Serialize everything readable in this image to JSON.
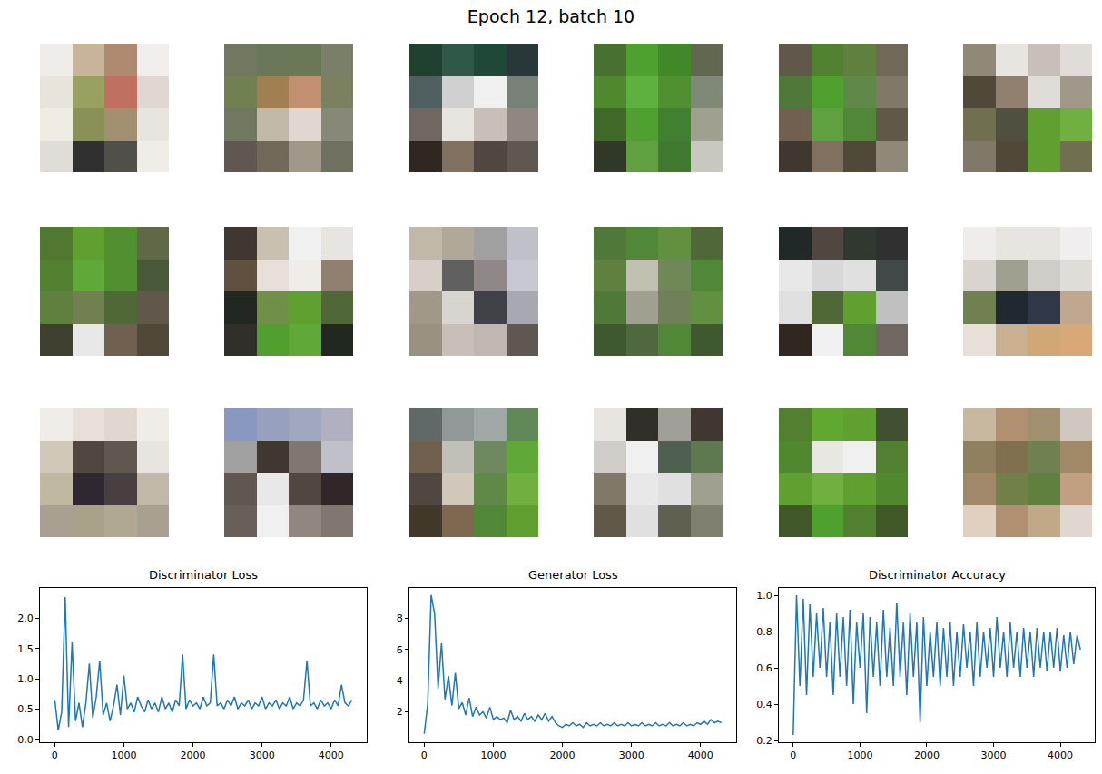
{
  "title": "Epoch 12, batch 10",
  "chart_data": [
    {
      "type": "image",
      "images": [
        {
          "pixels": [
            [
              "#f0ecea",
              "#c8b49a",
              "#b08a70",
              "#f2eeee"
            ],
            [
              "#e8e4dc",
              "#9aa060",
              "#c07060",
              "#e0d8d0"
            ],
            [
              "#f0ece4",
              "#8a9058",
              "#a09070",
              "#e8e4e0"
            ],
            [
              "#e0dcd8",
              "#303030",
              "#505048",
              "#f0ece8"
            ]
          ]
        },
        {
          "pixels": [
            [
              "#707860",
              "#687858",
              "#6a7858",
              "#7a8068"
            ],
            [
              "#708050",
              "#a08050",
              "#c09070",
              "#7a8060"
            ],
            [
              "#707860",
              "#c0b8a8",
              "#e0d8d0",
              "#888878"
            ],
            [
              "#605850",
              "#706858",
              "#a09888",
              "#707060"
            ]
          ]
        },
        {
          "pixels": [
            [
              "#204030",
              "#305848",
              "#204838",
              "#283838"
            ],
            [
              "#506060",
              "#d0d0d0",
              "#f0f0f0",
              "#788078"
            ],
            [
              "#706860",
              "#e8e4e0",
              "#c8c0b8",
              "#908880"
            ],
            [
              "#302820",
              "#807060",
              "#504840",
              "#605850"
            ]
          ]
        },
        {
          "pixels": [
            [
              "#487030",
              "#50a030",
              "#408828",
              "#606850"
            ],
            [
              "#508830",
              "#60b040",
              "#509030",
              "#808878"
            ],
            [
              "#406828",
              "#50a030",
              "#408030",
              "#a0a090"
            ],
            [
              "#303828",
              "#60a040",
              "#407830",
              "#c8c8c0"
            ]
          ]
        },
        {
          "pixels": [
            [
              "#605848",
              "#508030",
              "#608040",
              "#706858"
            ],
            [
              "#507838",
              "#50a030",
              "#608848",
              "#807868"
            ],
            [
              "#706050",
              "#60a040",
              "#508838",
              "#605848"
            ],
            [
              "#403830",
              "#807060",
              "#504838",
              "#908878"
            ]
          ]
        },
        {
          "pixels": [
            [
              "#908878",
              "#e8e4e0",
              "#c8c0b8",
              "#e0dcd8"
            ],
            [
              "#504838",
              "#908070",
              "#e0dcd8",
              "#a09888"
            ],
            [
              "#707050",
              "#505040",
              "#60a030",
              "#70b040"
            ],
            [
              "#807868",
              "#504838",
              "#60a030",
              "#707050"
            ]
          ]
        },
        {
          "pixels": [
            [
              "#507830",
              "#60a030",
              "#509030",
              "#606848"
            ],
            [
              "#508030",
              "#60a838",
              "#509030",
              "#485838"
            ],
            [
              "#608040",
              "#708050",
              "#506838",
              "#605848"
            ],
            [
              "#404030",
              "#e8e8e8",
              "#706050",
              "#504838"
            ]
          ]
        },
        {
          "pixels": [
            [
              "#403830",
              "#c8c0b0",
              "#f0f0f0",
              "#e8e4e0"
            ],
            [
              "#605040",
              "#e8e0d8",
              "#f0ece8",
              "#908070"
            ],
            [
              "#202820",
              "#709048",
              "#60a030",
              "#506838"
            ],
            [
              "#303028",
              "#50a030",
              "#60a838",
              "#202820"
            ]
          ]
        },
        {
          "pixels": [
            [
              "#c0b8a8",
              "#b0a898",
              "#a0a0a0",
              "#c0c0c8"
            ],
            [
              "#d8d0c8",
              "#606060",
              "#908888",
              "#c8c8d0"
            ],
            [
              "#a09888",
              "#d8d4d0",
              "#404048",
              "#a8a8b0"
            ],
            [
              "#989080",
              "#c8c0b8",
              "#c0b8b0",
              "#605850"
            ]
          ]
        },
        {
          "pixels": [
            [
              "#507838",
              "#508838",
              "#609040",
              "#506838"
            ],
            [
              "#608040",
              "#c0c0b0",
              "#708858",
              "#508838"
            ],
            [
              "#507838",
              "#a0a090",
              "#708058",
              "#609040"
            ],
            [
              "#405830",
              "#506840",
              "#508838",
              "#405830"
            ]
          ]
        },
        {
          "pixels": [
            [
              "#202828",
              "#504840",
              "#303830",
              "#303030"
            ],
            [
              "#e8e8e8",
              "#d8d8d8",
              "#e0e0e0",
              "#404848"
            ],
            [
              "#e0e0e0",
              "#506838",
              "#60a030",
              "#c0c0c0"
            ],
            [
              "#302820",
              "#f0f0f0",
              "#508838",
              "#706860"
            ]
          ]
        },
        {
          "pixels": [
            [
              "#f0ecec",
              "#e8e4e0",
              "#e8e4e0",
              "#f0eeee"
            ],
            [
              "#d8d4d0",
              "#a0a090",
              "#d0ccc8",
              "#e0dcd8"
            ],
            [
              "#708050",
              "#202830",
              "#303848",
              "#c0a890"
            ],
            [
              "#e8e0d8",
              "#c8b090",
              "#d0a878",
              "#d8a878"
            ]
          ]
        },
        {
          "pixels": [
            [
              "#f0ece8",
              "#e8e0d8",
              "#e0d8d0",
              "#f0ece8"
            ],
            [
              "#d0c8b8",
              "#504840",
              "#605850",
              "#e8e4e0"
            ],
            [
              "#c0b8a0",
              "#302830",
              "#484040",
              "#c0b8a8"
            ],
            [
              "#a8a090",
              "#a8a088",
              "#b0a890",
              "#a8a090"
            ]
          ]
        },
        {
          "pixels": [
            [
              "#8898c0",
              "#98a0c0",
              "#a0a8c0",
              "#b0b0c0"
            ],
            [
              "#a0a0a0",
              "#403830",
              "#807870",
              "#c0c0c8"
            ],
            [
              "#605850",
              "#e8e8e8",
              "#504840",
              "#302828"
            ],
            [
              "#686058",
              "#f0f0f0",
              "#908880",
              "#807870"
            ]
          ]
        },
        {
          "pixels": [
            [
              "#606868",
              "#909898",
              "#a0a8a8",
              "#608858"
            ],
            [
              "#706050",
              "#c0c0b8",
              "#708860",
              "#60a838"
            ],
            [
              "#504840",
              "#d0c8b8",
              "#608848",
              "#70b040"
            ],
            [
              "#403828",
              "#806850",
              "#508838",
              "#60a030"
            ]
          ]
        },
        {
          "pixels": [
            [
              "#e8e4e0",
              "#303028",
              "#a0a098",
              "#403830"
            ],
            [
              "#d0ccc8",
              "#f0f0f0",
              "#506050",
              "#607850"
            ],
            [
              "#807868",
              "#e8e8e8",
              "#e0e0e0",
              "#a0a090"
            ],
            [
              "#605848",
              "#e0e0e0",
              "#606050",
              "#808070"
            ]
          ]
        },
        {
          "pixels": [
            [
              "#508030",
              "#60a830",
              "#60a030",
              "#405030"
            ],
            [
              "#508830",
              "#e8e8e0",
              "#f0f0f0",
              "#508030"
            ],
            [
              "#60a030",
              "#70b040",
              "#60a030",
              "#508830"
            ],
            [
              "#405828",
              "#50a030",
              "#508030",
              "#405828"
            ]
          ]
        },
        {
          "pixels": [
            [
              "#c8b8a0",
              "#b09070",
              "#a09070",
              "#d0c8c0"
            ],
            [
              "#908060",
              "#807050",
              "#708050",
              "#a08868"
            ],
            [
              "#a08868",
              "#708048",
              "#608040",
              "#c0a080"
            ],
            [
              "#e0d0c0",
              "#b09070",
              "#c0a888",
              "#e0d8d0"
            ]
          ]
        }
      ]
    },
    {
      "type": "line",
      "title": "Discriminator Loss",
      "color": "#1f77b4",
      "x": [
        0,
        50,
        100,
        150,
        200,
        250,
        300,
        350,
        400,
        450,
        500,
        550,
        600,
        650,
        700,
        750,
        800,
        850,
        900,
        950,
        1000,
        1050,
        1100,
        1150,
        1200,
        1250,
        1300,
        1350,
        1400,
        1450,
        1500,
        1550,
        1600,
        1650,
        1700,
        1750,
        1800,
        1850,
        1900,
        1950,
        2000,
        2050,
        2100,
        2150,
        2200,
        2250,
        2300,
        2350,
        2400,
        2450,
        2500,
        2550,
        2600,
        2650,
        2700,
        2750,
        2800,
        2850,
        2900,
        2950,
        3000,
        3050,
        3100,
        3150,
        3200,
        3250,
        3300,
        3350,
        3400,
        3450,
        3500,
        3550,
        3600,
        3650,
        3700,
        3750,
        3800,
        3850,
        3900,
        3950,
        4000,
        4050,
        4100,
        4150,
        4200,
        4250,
        4300
      ],
      "values": [
        0.65,
        0.15,
        0.45,
        2.35,
        0.2,
        1.6,
        0.3,
        0.6,
        0.2,
        0.6,
        1.25,
        0.35,
        0.7,
        1.3,
        0.4,
        0.6,
        0.3,
        0.55,
        0.9,
        0.4,
        1.05,
        0.5,
        0.6,
        0.45,
        0.7,
        0.55,
        0.45,
        0.65,
        0.5,
        0.6,
        0.45,
        0.7,
        0.5,
        0.6,
        0.45,
        0.65,
        0.55,
        1.4,
        0.5,
        0.65,
        0.55,
        0.6,
        0.5,
        0.7,
        0.55,
        0.6,
        1.4,
        0.55,
        0.6,
        0.5,
        0.65,
        0.55,
        0.7,
        0.5,
        0.6,
        0.55,
        0.65,
        0.5,
        0.6,
        0.55,
        0.7,
        0.5,
        0.6,
        0.55,
        0.65,
        0.5,
        0.6,
        0.55,
        0.7,
        0.5,
        0.6,
        0.55,
        0.65,
        1.3,
        0.55,
        0.6,
        0.5,
        0.65,
        0.55,
        0.6,
        0.5,
        0.65,
        0.55,
        0.9,
        0.6,
        0.55,
        0.65
      ],
      "xlim": [
        -215,
        4515
      ],
      "xticks": [
        0,
        1000,
        2000,
        3000,
        4000
      ],
      "ylim": [
        -0.05,
        2.5
      ],
      "yticks": [
        {
          "value": 0,
          "label": "0.0"
        },
        {
          "value": 0.5,
          "label": "0.5"
        },
        {
          "value": 1,
          "label": "1.0"
        },
        {
          "value": 1.5,
          "label": "1.5"
        },
        {
          "value": 2,
          "label": "2.0"
        }
      ],
      "grid": false
    },
    {
      "type": "line",
      "title": "Generator Loss",
      "color": "#1f77b4",
      "x": [
        0,
        50,
        100,
        150,
        200,
        250,
        300,
        350,
        400,
        450,
        500,
        550,
        600,
        650,
        700,
        750,
        800,
        850,
        900,
        950,
        1000,
        1050,
        1100,
        1150,
        1200,
        1250,
        1300,
        1350,
        1400,
        1450,
        1500,
        1550,
        1600,
        1650,
        1700,
        1750,
        1800,
        1850,
        1900,
        1950,
        2000,
        2050,
        2100,
        2150,
        2200,
        2250,
        2300,
        2350,
        2400,
        2450,
        2500,
        2550,
        2600,
        2650,
        2700,
        2750,
        2800,
        2850,
        2900,
        2950,
        3000,
        3050,
        3100,
        3150,
        3200,
        3250,
        3300,
        3350,
        3400,
        3450,
        3500,
        3550,
        3600,
        3650,
        3700,
        3750,
        3800,
        3850,
        3900,
        3950,
        4000,
        4050,
        4100,
        4150,
        4200,
        4250,
        4300
      ],
      "values": [
        0.6,
        2.5,
        9.5,
        8.3,
        3.5,
        6.4,
        2.8,
        4.3,
        2.4,
        4.5,
        2.2,
        2.6,
        1.8,
        2.9,
        1.7,
        2.3,
        1.8,
        2.0,
        1.6,
        2.3,
        1.5,
        1.7,
        1.5,
        1.6,
        1.3,
        2.1,
        1.5,
        1.7,
        1.4,
        1.9,
        1.5,
        1.7,
        1.4,
        1.8,
        1.5,
        1.9,
        1.4,
        1.7,
        1.3,
        1.1,
        1.0,
        1.2,
        1.1,
        1.3,
        1.1,
        1.2,
        1.0,
        1.3,
        1.1,
        1.2,
        1.1,
        1.3,
        1.1,
        1.2,
        1.1,
        1.3,
        1.1,
        1.2,
        1.1,
        1.3,
        1.1,
        1.2,
        1.1,
        1.3,
        1.1,
        1.2,
        1.1,
        1.3,
        1.1,
        1.2,
        1.1,
        1.3,
        1.1,
        1.2,
        1.1,
        1.3,
        1.1,
        1.2,
        1.1,
        1.3,
        1.2,
        1.4,
        1.2,
        1.5,
        1.3,
        1.4,
        1.3
      ],
      "xlim": [
        -215,
        4515
      ],
      "xticks": [
        0,
        1000,
        2000,
        3000,
        4000
      ],
      "ylim": [
        0.05,
        9.95
      ],
      "yticks": [
        2,
        4,
        6,
        8
      ],
      "grid": false
    },
    {
      "type": "line",
      "title": "Discriminator Accuracy",
      "color": "#1f77b4",
      "x": [
        0,
        50,
        100,
        150,
        200,
        250,
        300,
        350,
        400,
        450,
        500,
        550,
        600,
        650,
        700,
        750,
        800,
        850,
        900,
        950,
        1000,
        1050,
        1100,
        1150,
        1200,
        1250,
        1300,
        1350,
        1400,
        1450,
        1500,
        1550,
        1600,
        1650,
        1700,
        1750,
        1800,
        1850,
        1900,
        1950,
        2000,
        2050,
        2100,
        2150,
        2200,
        2250,
        2300,
        2350,
        2400,
        2450,
        2500,
        2550,
        2600,
        2650,
        2700,
        2750,
        2800,
        2850,
        2900,
        2950,
        3000,
        3050,
        3100,
        3150,
        3200,
        3250,
        3300,
        3350,
        3400,
        3450,
        3500,
        3550,
        3600,
        3650,
        3700,
        3750,
        3800,
        3850,
        3900,
        3950,
        4000,
        4050,
        4100,
        4150,
        4200,
        4250,
        4300
      ],
      "values": [
        0.23,
        1.0,
        0.5,
        0.98,
        0.45,
        0.95,
        0.55,
        0.9,
        0.6,
        0.93,
        0.55,
        0.85,
        0.45,
        0.9,
        0.55,
        0.88,
        0.5,
        0.92,
        0.4,
        0.85,
        0.6,
        0.9,
        0.35,
        0.88,
        0.55,
        0.85,
        0.5,
        0.92,
        0.55,
        0.82,
        0.5,
        0.96,
        0.55,
        0.85,
        0.45,
        0.9,
        0.55,
        0.85,
        0.3,
        0.88,
        0.5,
        0.8,
        0.55,
        0.85,
        0.5,
        0.82,
        0.55,
        0.85,
        0.5,
        0.8,
        0.55,
        0.84,
        0.6,
        0.8,
        0.5,
        0.85,
        0.55,
        0.8,
        0.6,
        0.82,
        0.55,
        0.88,
        0.6,
        0.8,
        0.55,
        0.85,
        0.6,
        0.8,
        0.55,
        0.82,
        0.6,
        0.8,
        0.55,
        0.82,
        0.6,
        0.8,
        0.58,
        0.8,
        0.6,
        0.82,
        0.58,
        0.78,
        0.6,
        0.8,
        0.62,
        0.78,
        0.7
      ],
      "xlim": [
        -215,
        4515
      ],
      "xticks": [
        0,
        1000,
        2000,
        3000,
        4000
      ],
      "ylim": [
        0.19,
        1.04
      ],
      "yticks": [
        0.2,
        0.4,
        0.6,
        0.8,
        {
          "value": 1,
          "label": "1.0"
        }
      ],
      "grid": false
    }
  ]
}
